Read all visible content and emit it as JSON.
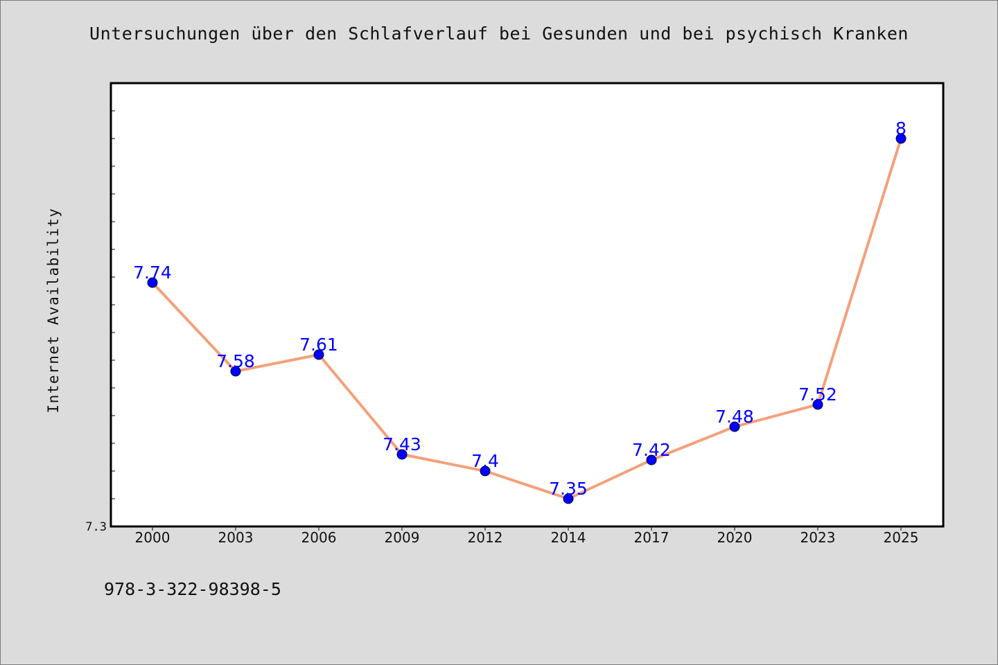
{
  "title": "Untersuchungen über den Schlafverlauf bei Gesunden und bei psychisch Kranken",
  "caption": "978-3-322-98398-5",
  "colors": {
    "background": "#dcdcdc",
    "plot_background": "#ffffff",
    "line": "#f4a07a",
    "marker": "#0000ff",
    "data_label": "#0000ff"
  },
  "chart_data": {
    "type": "line",
    "title": "Untersuchungen über den Schlafverlauf bei Gesunden und bei psychisch Kranken",
    "xlabel": "",
    "ylabel": "Internet Availability",
    "categories": [
      "2000",
      "2003",
      "2006",
      "2009",
      "2012",
      "2014",
      "2017",
      "2020",
      "2023",
      "2025"
    ],
    "series": [
      {
        "values": [
          7.74,
          7.58,
          7.61,
          7.43,
          7.4,
          7.35,
          7.42,
          7.48,
          7.52,
          8
        ]
      }
    ],
    "data_labels": [
      "7.74",
      "7.58",
      "7.61",
      "7.43",
      "7.4",
      "7.35",
      "7.42",
      "7.48",
      "7.52",
      "8"
    ],
    "ylim": [
      7.3,
      8.1
    ],
    "ytick_labels": [
      "7.3"
    ],
    "minor_tick_step": 0.05,
    "grid": false,
    "legend": "none"
  }
}
